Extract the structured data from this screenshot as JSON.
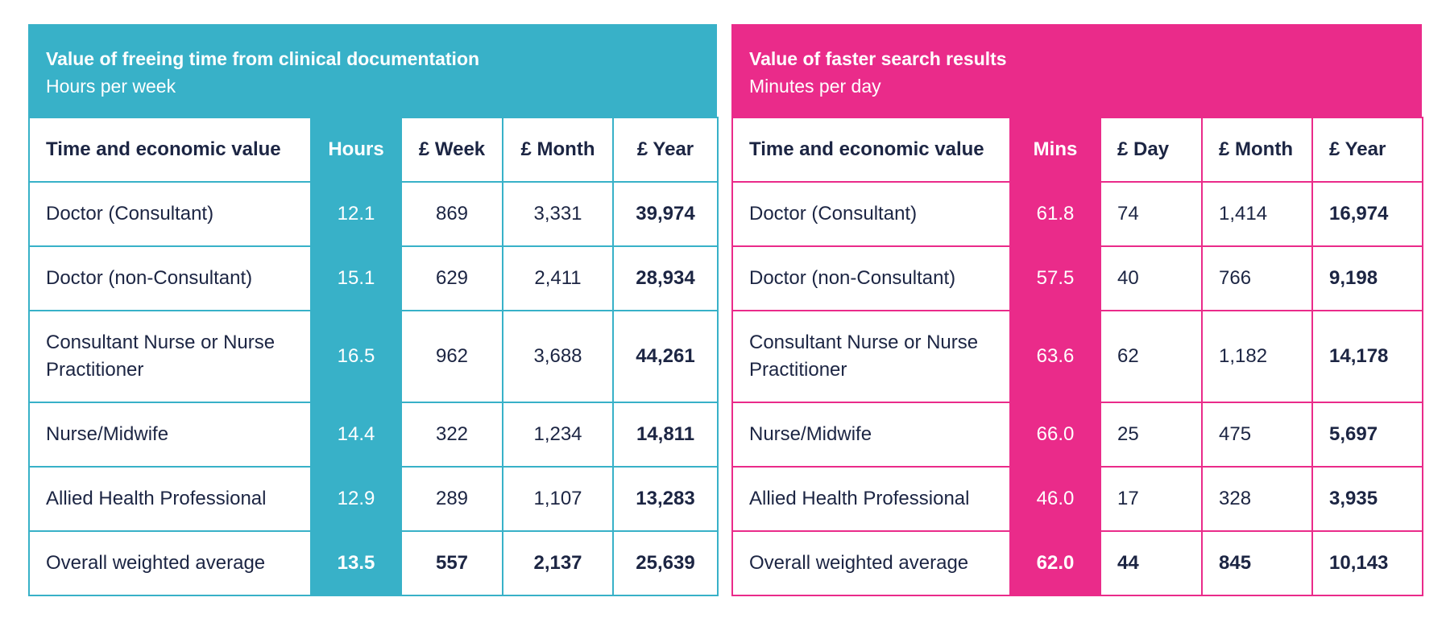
{
  "colors": {
    "teal": "#38b1c8",
    "pink": "#ea2b8a",
    "text": "#1c2543"
  },
  "left": {
    "title": "Value of freeing time from clinical documentation",
    "subtitle": "Hours per week",
    "headers": [
      "Time and economic value",
      "Hours",
      "£ Week",
      "£ Month",
      "£ Year"
    ],
    "rows": [
      [
        "Doctor (Consultant)",
        "12.1",
        "869",
        "3,331",
        "39,974"
      ],
      [
        "Doctor (non-Consultant)",
        "15.1",
        "629",
        "2,411",
        "28,934"
      ],
      [
        "Consultant Nurse or Nurse Practitioner",
        "16.5",
        "962",
        "3,688",
        "44,261"
      ],
      [
        "Nurse/Midwife",
        "14.4",
        "322",
        "1,234",
        "14,811"
      ],
      [
        "Allied Health Professional",
        "12.9",
        "289",
        "1,107",
        "13,283"
      ],
      [
        "Overall weighted average",
        "13.5",
        "557",
        "2,137",
        "25,639"
      ]
    ]
  },
  "right": {
    "title": "Value of faster search results",
    "subtitle": "Minutes per day",
    "headers": [
      "Time and economic value",
      "Mins",
      "£ Day",
      "£ Month",
      "£ Year"
    ],
    "rows": [
      [
        "Doctor (Consultant)",
        "61.8",
        "74",
        "1,414",
        "16,974"
      ],
      [
        "Doctor (non-Consultant)",
        "57.5",
        "40",
        "766",
        "9,198"
      ],
      [
        "Consultant Nurse or Nurse Practitioner",
        "63.6",
        "62",
        "1,182",
        "14,178"
      ],
      [
        "Nurse/Midwife",
        "66.0",
        "25",
        "475",
        "5,697"
      ],
      [
        "Allied Health Professional",
        "46.0",
        "17",
        "328",
        "3,935"
      ],
      [
        "Overall weighted average",
        "62.0",
        "44",
        "845",
        "10,143"
      ]
    ]
  }
}
